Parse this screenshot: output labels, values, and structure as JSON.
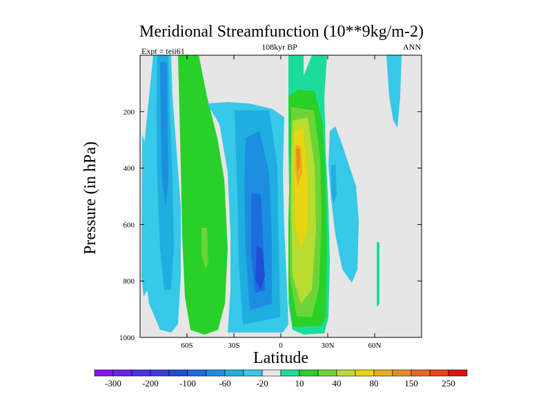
{
  "header": {
    "title": "Meridional Streamfunction (10**9kg/m-2)",
    "left_label": "Expt = teii61",
    "center_label": "108kyr BP",
    "right_label": "ANN"
  },
  "chart_data": {
    "type": "heatmap",
    "title": "Meridional Streamfunction (10**9kg/m-2)",
    "xlabel": "Latitude",
    "ylabel": "Pressure (in hPa)",
    "xlim": [
      -90,
      90
    ],
    "ylim": [
      1000,
      0
    ],
    "x_ticks": [
      {
        "value": -60,
        "label": "60S"
      },
      {
        "value": -30,
        "label": "30S"
      },
      {
        "value": 0,
        "label": "0"
      },
      {
        "value": 30,
        "label": "30N"
      },
      {
        "value": 60,
        "label": "60N"
      }
    ],
    "y_ticks": [
      {
        "value": 200,
        "label": "200"
      },
      {
        "value": 400,
        "label": "400"
      },
      {
        "value": 600,
        "label": "600"
      },
      {
        "value": 800,
        "label": "800"
      },
      {
        "value": 1000,
        "label": "1000"
      }
    ],
    "background_color": "#e6e6e6",
    "colorbar": {
      "colors": [
        "#8a12e8",
        "#6e22e8",
        "#5030e8",
        "#3a3ae0",
        "#1e4ed8",
        "#1c6ee0",
        "#1c8ee0",
        "#1eaee0",
        "#38c8e8",
        "#e6e6e6",
        "#1cdc9c",
        "#28d028",
        "#6cd438",
        "#b8dc30",
        "#e8d410",
        "#e8b018",
        "#e88c20",
        "#e86820",
        "#e84418",
        "#e01010"
      ],
      "labels": [
        "-300",
        "-200",
        "-100",
        "-60",
        "-20",
        "10",
        "40",
        "80",
        "150",
        "250"
      ]
    },
    "features": [
      {
        "name": "SH polar cell",
        "lat_range": [
          -80,
          -62
        ],
        "p_range": [
          0,
          990
        ],
        "min_level": "-60",
        "sign": "negative"
      },
      {
        "name": "SH Ferrel cell",
        "lat_range": [
          -62,
          -37
        ],
        "p_range": [
          0,
          975
        ],
        "max_level": "40",
        "sign": "positive"
      },
      {
        "name": "SH Hadley cell",
        "lat_range": [
          -32,
          2
        ],
        "p_range": [
          150,
          960
        ],
        "min_level": "-100",
        "center": [
          -13,
          750
        ],
        "sign": "negative"
      },
      {
        "name": "NH Hadley cell",
        "lat_range": [
          6,
          28
        ],
        "p_range": [
          120,
          980
        ],
        "max_level": "150",
        "center": [
          12,
          380
        ],
        "sign": "positive"
      },
      {
        "name": "NH Ferrel cell",
        "lat_range": [
          30,
          50
        ],
        "p_range": [
          250,
          800
        ],
        "min_level": "-20",
        "sign": "negative"
      },
      {
        "name": "NH upper cell",
        "lat_range": [
          65,
          77
        ],
        "p_range": [
          0,
          250
        ],
        "min_level": "-20",
        "sign": "negative"
      }
    ]
  }
}
